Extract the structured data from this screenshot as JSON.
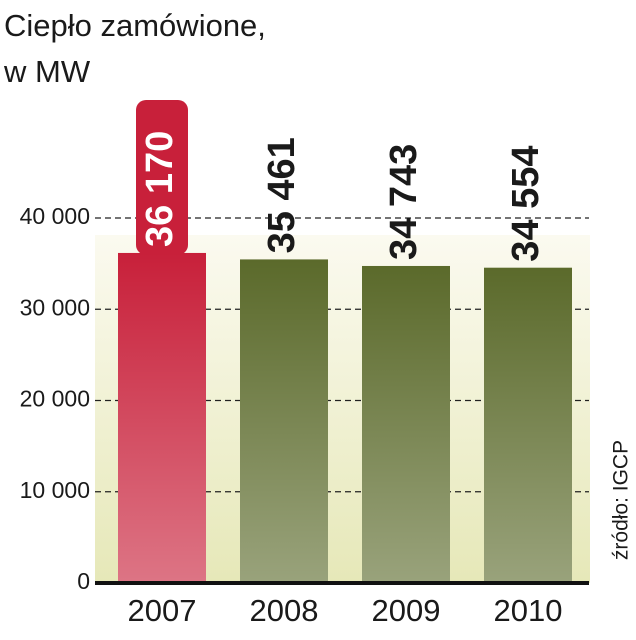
{
  "chart_data": {
    "type": "bar",
    "title_lines": [
      "Ciepło zamówione,",
      "w MW"
    ],
    "source": "źródło: IGCP",
    "categories": [
      "2007",
      "2008",
      "2009",
      "2010"
    ],
    "values": [
      36170,
      35461,
      34743,
      34554
    ],
    "value_labels": [
      "36 170",
      "35 461",
      "34 743",
      "34 554"
    ],
    "colors": [
      "#c8203a",
      "#5b6a2b",
      "#5b6a2b",
      "#5b6a2b"
    ],
    "highlight_index": 0,
    "ylim": [
      0,
      40000
    ],
    "yticks": [
      0,
      {
        "value": 10000,
        "label": "10 000"
      },
      {
        "value": 20000,
        "label": "20 000"
      },
      {
        "value": 30000,
        "label": "30 000"
      },
      {
        "value": 40000,
        "label": "40 000"
      }
    ],
    "grid": true
  }
}
